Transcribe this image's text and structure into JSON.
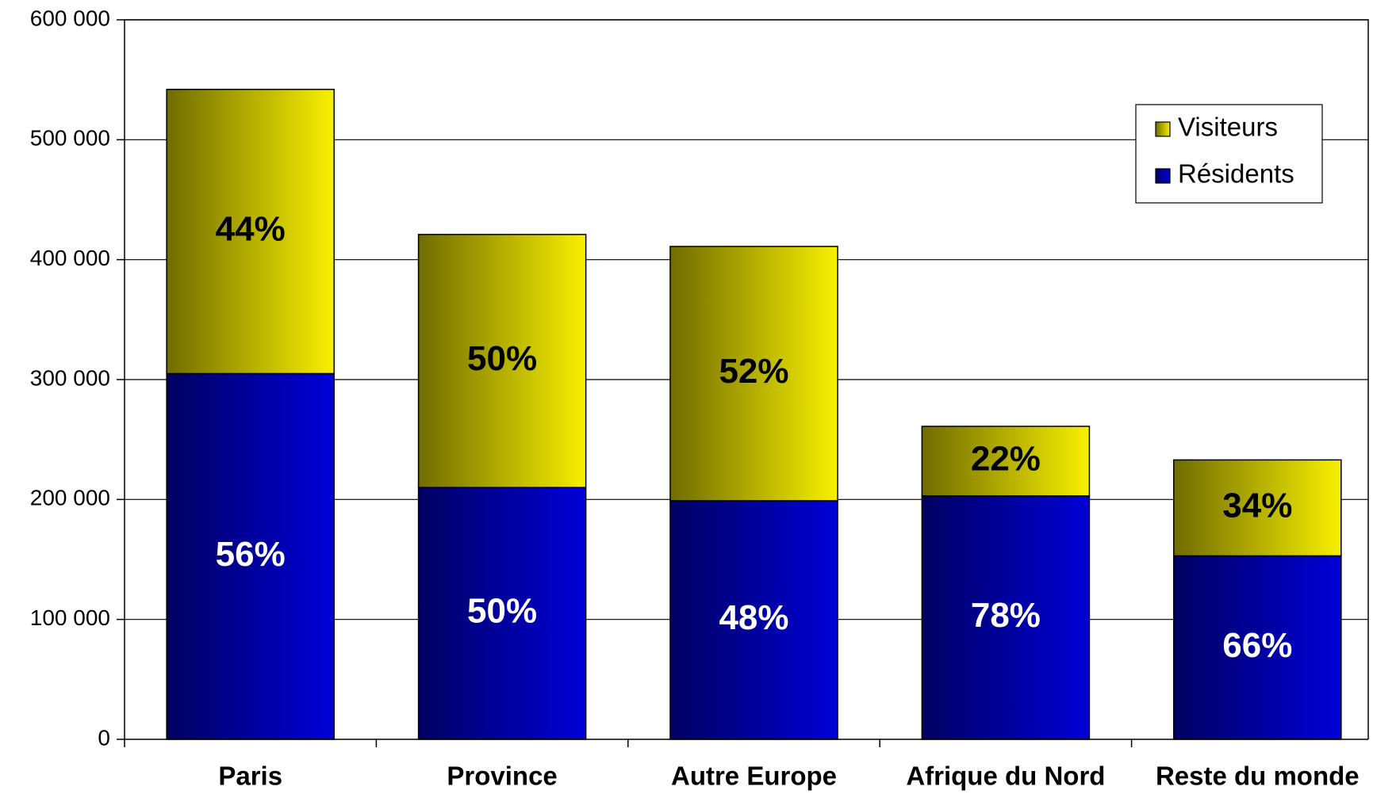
{
  "chart_data": {
    "type": "stacked_bar",
    "categories": [
      "Paris",
      "Province",
      "Autre Europe",
      "Afrique du Nord",
      "Reste du monde"
    ],
    "series": [
      {
        "name": "Résidents",
        "color": "#0000d8",
        "values": [
          305000,
          210000,
          199000,
          203000,
          153000
        ],
        "data_labels": [
          "56%",
          "50%",
          "48%",
          "78%",
          "66%"
        ],
        "label_color": "#ffffff"
      },
      {
        "name": "Visiteurs",
        "color": "#f8f000",
        "values": [
          237000,
          211000,
          212000,
          58000,
          80000
        ],
        "data_labels": [
          "44%",
          "50%",
          "52%",
          "22%",
          "34%"
        ],
        "label_color": "#000000"
      }
    ],
    "ylim": [
      0,
      600000
    ],
    "yticks": [
      0,
      {
        "value": 100000,
        "label": "100 000"
      },
      {
        "value": 200000,
        "label": "200 000"
      },
      {
        "value": 300000,
        "label": "300 000"
      },
      {
        "value": 400000,
        "label": "400 000"
      },
      {
        "value": 500000,
        "label": "500 000"
      },
      {
        "value": 600000,
        "label": "600 000"
      }
    ],
    "grid": true,
    "legend": "upper right"
  }
}
